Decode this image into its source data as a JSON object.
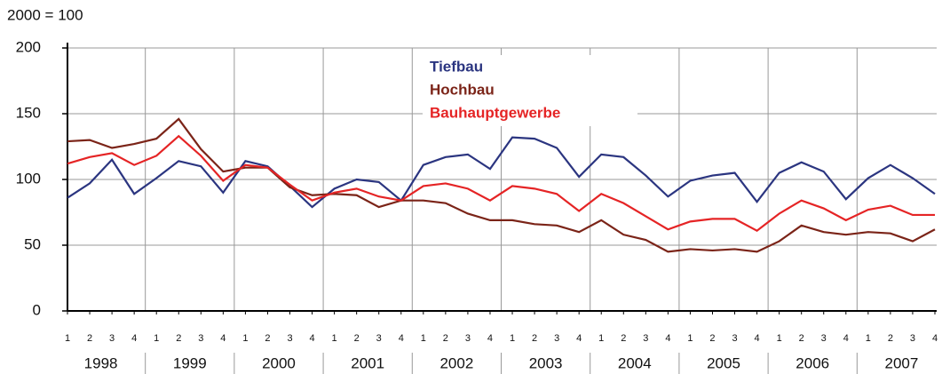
{
  "chart_data": {
    "type": "line",
    "y_axis_label": "2000 = 100",
    "categories": [
      "1",
      "2",
      "3",
      "4",
      "1",
      "2",
      "3",
      "4",
      "1",
      "2",
      "3",
      "4",
      "1",
      "2",
      "3",
      "4",
      "1",
      "2",
      "3",
      "4",
      "1",
      "2",
      "3",
      "4",
      "1",
      "2",
      "3",
      "4",
      "1",
      "2",
      "3",
      "4",
      "1",
      "2",
      "3",
      "4",
      "1",
      "2",
      "3",
      "4"
    ],
    "years": [
      "1998",
      "1999",
      "2000",
      "2001",
      "2002",
      "2003",
      "2004",
      "2005",
      "2006",
      "2007"
    ],
    "series": [
      {
        "name": "Tiefbau",
        "color": "#2b3580",
        "values": [
          86,
          97,
          115,
          89,
          101,
          114,
          110,
          90,
          114,
          110,
          95,
          79,
          93,
          100,
          98,
          84,
          111,
          117,
          119,
          108,
          132,
          131,
          124,
          102,
          119,
          117,
          103,
          87,
          99,
          103,
          105,
          83,
          105,
          113,
          106,
          85,
          101,
          111,
          101,
          89
        ]
      },
      {
        "name": "Hochbau",
        "color": "#7b2418",
        "values": [
          129,
          130,
          124,
          127,
          131,
          146,
          123,
          106,
          109,
          109,
          94,
          88,
          89,
          88,
          79,
          84,
          84,
          82,
          74,
          69,
          69,
          66,
          65,
          60,
          69,
          58,
          54,
          45,
          47,
          46,
          47,
          45,
          53,
          65,
          60,
          58,
          60,
          59,
          53,
          62
        ]
      },
      {
        "name": "Bauhauptgewerbe",
        "color": "#e52425",
        "values": [
          112,
          117,
          120,
          111,
          118,
          133,
          118,
          99,
          111,
          109,
          96,
          84,
          90,
          93,
          87,
          84,
          95,
          97,
          93,
          84,
          95,
          93,
          89,
          76,
          89,
          82,
          72,
          62,
          68,
          70,
          70,
          61,
          74,
          84,
          78,
          69,
          77,
          80,
          73,
          73
        ]
      }
    ],
    "ylim": [
      0,
      200
    ],
    "yticks": [
      0,
      50,
      100,
      150,
      200
    ],
    "grid": true,
    "legend": "top"
  }
}
